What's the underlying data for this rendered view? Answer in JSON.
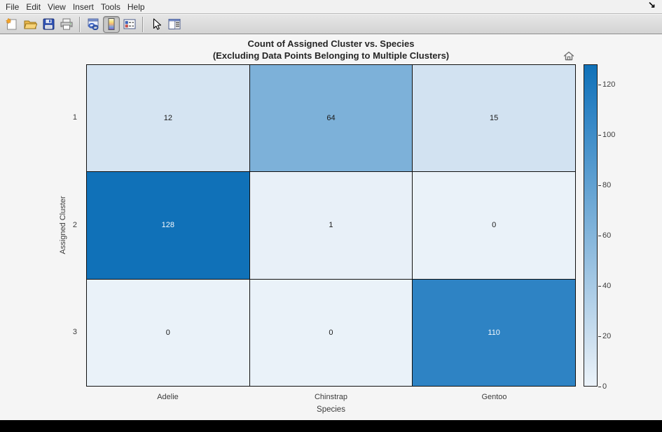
{
  "window": {
    "cursor_glyph": "↘"
  },
  "menubar": {
    "items": [
      "File",
      "Edit",
      "View",
      "Insert",
      "Tools",
      "Help"
    ]
  },
  "toolbar": {
    "buttons": [
      {
        "icon": "new-figure-icon",
        "pressed": false
      },
      {
        "icon": "open-file-icon",
        "pressed": false
      },
      {
        "icon": "save-figure-icon",
        "pressed": false
      },
      {
        "icon": "print-figure-icon",
        "pressed": false
      },
      {
        "icon": "separator"
      },
      {
        "icon": "link-plot-icon",
        "pressed": false
      },
      {
        "icon": "insert-colorbar-icon",
        "pressed": true
      },
      {
        "icon": "insert-legend-icon",
        "pressed": false
      },
      {
        "icon": "separator"
      },
      {
        "icon": "edit-plot-icon",
        "pressed": false
      },
      {
        "icon": "plot-browser-icon",
        "pressed": false
      }
    ]
  },
  "figure": {
    "title_line1": "Count of Assigned Cluster vs. Species",
    "title_line2": "(Excluding Data Points Belonging to Multiple Clusters)",
    "home_icon": "home-icon"
  },
  "chart_data": {
    "type": "heatmap",
    "title": "Count of Assigned Cluster vs. Species (Excluding Data Points Belonging to Multiple Clusters)",
    "xlabel": "Species",
    "ylabel": "Assigned Cluster",
    "x_categories": [
      "Adelie",
      "Chinstrap",
      "Gentoo"
    ],
    "y_categories": [
      "1",
      "2",
      "3"
    ],
    "values": [
      [
        12,
        64,
        15
      ],
      [
        128,
        1,
        0
      ],
      [
        0,
        0,
        110
      ]
    ],
    "color_limits": [
      0,
      128
    ],
    "colorbar_ticks": [
      0,
      20,
      40,
      60,
      80,
      100,
      120
    ],
    "colorbar_position": "right",
    "cell_colors": [
      [
        "#d5e4f2",
        "#7db1d9",
        "#d2e2f1"
      ],
      [
        "#1071b8",
        "#e8f0f8",
        "#eaf2f9"
      ],
      [
        "#eaf2f9",
        "#eaf2f9",
        "#2e83c4"
      ]
    ],
    "cell_text_colors": [
      [
        "#1a1a1a",
        "#1a1a1a",
        "#1a1a1a"
      ],
      [
        "#f5f9fd",
        "#1a1a1a",
        "#1a1a1a"
      ],
      [
        "#1a1a1a",
        "#1a1a1a",
        "#f5f9fd"
      ]
    ],
    "colormap_stops": [
      [
        0.0,
        "#ecf3fa"
      ],
      [
        0.1,
        "#d6e5f2"
      ],
      [
        0.5,
        "#7db1d9"
      ],
      [
        0.86,
        "#2e83c4"
      ],
      [
        1.0,
        "#1071b8"
      ]
    ],
    "grid_color": "#101010",
    "background": "#f5f5f5"
  }
}
